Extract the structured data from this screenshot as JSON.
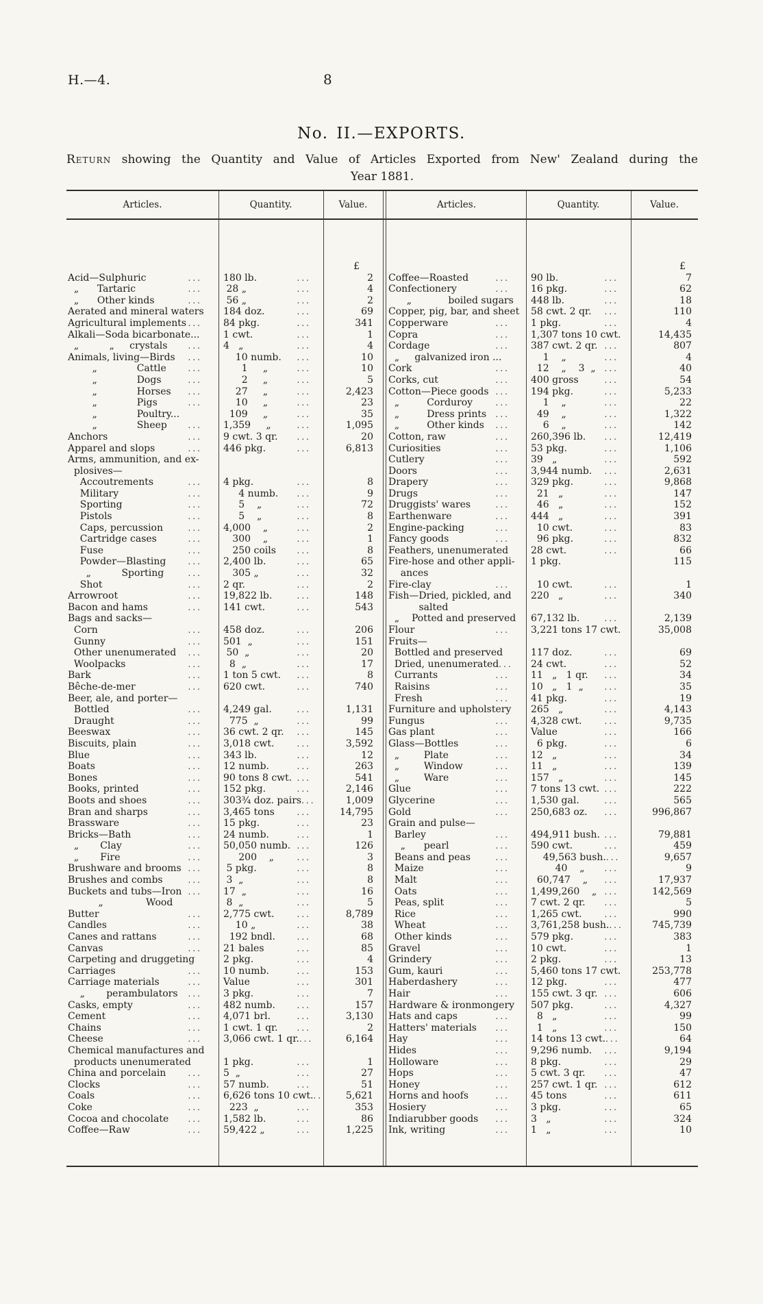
{
  "page": {
    "doc_ref": "H.—4.",
    "page_number": "8",
    "title": "No. II.—EXPORTS.",
    "subtitle_lead": "Return",
    "subtitle_rest": " showing the Quantity and Value of Articles Exported from New' Zealand during the",
    "subtitle_line2": "Year 1881."
  },
  "table": {
    "dots": "...",
    "currency_symbol": "£",
    "headers": [
      "Articles.",
      "Quantity.",
      "Value.",
      "Articles.",
      "Quantity.",
      "Value."
    ],
    "left_rows": [
      [
        "",
        0,
        "",
        0,
        "£"
      ],
      [
        "Acid—Sulphuric",
        1,
        "180 lb.",
        1,
        "2"
      ],
      [
        "  „      Tartaric",
        1,
        " 28 „",
        1,
        "4"
      ],
      [
        "  „      Other kinds",
        1,
        " 56 „",
        1,
        "2"
      ],
      [
        "Aerated and mineral waters",
        0,
        "184 doz.",
        1,
        "69"
      ],
      [
        "Agricultural implements",
        1,
        "84 pkg.",
        1,
        "341"
      ],
      [
        "Alkali—Soda bicarbonate...",
        0,
        "1 cwt.",
        1,
        "1"
      ],
      [
        "  „          „     crystals",
        1,
        "4   „",
        1,
        "4"
      ],
      [
        "Animals, living—Birds",
        1,
        "    10 numb.",
        1,
        "10"
      ],
      [
        "        „             Cattle",
        1,
        "      1     „",
        1,
        "10"
      ],
      [
        "        „             Dogs",
        1,
        "      2     „",
        1,
        "5"
      ],
      [
        "        „             Horses",
        1,
        "    27     „",
        1,
        "2,423"
      ],
      [
        "        „             Pigs",
        1,
        "    10     „",
        1,
        "23"
      ],
      [
        "        „             Poultry...",
        0,
        "  109     „",
        1,
        "35"
      ],
      [
        "        „             Sheep",
        1,
        "1,359     „",
        1,
        "1,095"
      ],
      [
        "Anchors",
        1,
        "9 cwt. 3 qr.",
        1,
        "20"
      ],
      [
        "Apparel and slops",
        1,
        "446 pkg.",
        1,
        "6,813"
      ],
      [
        "Arms, ammunition, and ex-",
        0,
        "",
        0,
        ""
      ],
      [
        "  plosives—",
        0,
        "",
        0,
        ""
      ],
      [
        "    Accoutrements",
        1,
        "4 pkg.",
        1,
        "8"
      ],
      [
        "    Military",
        1,
        "     4 numb.",
        1,
        "9"
      ],
      [
        "    Sporting",
        1,
        "     5    „",
        1,
        "72"
      ],
      [
        "    Pistols",
        1,
        "     5    „",
        1,
        "8"
      ],
      [
        "    Caps, percussion",
        1,
        "4,000    „",
        1,
        "2"
      ],
      [
        "    Cartridge cases",
        1,
        "   300    „",
        1,
        "1"
      ],
      [
        "    Fuse",
        1,
        "   250 coils",
        1,
        "8"
      ],
      [
        "    Powder—Blasting",
        1,
        "2,400 lb.",
        1,
        "65"
      ],
      [
        "      „          Sporting",
        1,
        "   305 „",
        1,
        "32"
      ],
      [
        "    Shot",
        1,
        "2 qr.",
        1,
        "2"
      ],
      [
        "Arrowroot",
        1,
        "19,822 lb.",
        1,
        "148"
      ],
      [
        "Bacon and hams",
        1,
        "141 cwt.",
        1,
        "543"
      ],
      [
        "Bags and sacks—",
        0,
        "",
        0,
        ""
      ],
      [
        "  Corn",
        1,
        "458 doz.",
        1,
        "206"
      ],
      [
        "  Gunny",
        1,
        "501  „",
        1,
        "151"
      ],
      [
        "  Other unenumerated",
        1,
        " 50  „",
        1,
        "20"
      ],
      [
        "  Woolpacks",
        1,
        "  8  „",
        1,
        "17"
      ],
      [
        "Bark",
        1,
        "1 ton 5 cwt.",
        1,
        "8"
      ],
      [
        "Bêche-de-mer",
        1,
        "620 cwt.",
        1,
        "740"
      ],
      [
        "Beer, ale, and porter—",
        0,
        "",
        0,
        ""
      ],
      [
        "  Bottled",
        1,
        "4,249 gal.",
        1,
        "1,131"
      ],
      [
        "  Draught",
        1,
        "  775  „",
        1,
        "99"
      ],
      [
        "Beeswax",
        1,
        "36 cwt. 2 qr.",
        1,
        "145"
      ],
      [
        "Biscuits, plain",
        1,
        "3,018 cwt.",
        1,
        "3,592"
      ],
      [
        "Blue",
        1,
        "343 lb.",
        1,
        "12"
      ],
      [
        "Boats",
        1,
        "12 numb.",
        1,
        "263"
      ],
      [
        "Bones",
        1,
        "90 tons 8 cwt.",
        1,
        "541"
      ],
      [
        "Books, printed",
        1,
        "152 pkg.",
        1,
        "2,146"
      ],
      [
        "Boots and shoes",
        1,
        "303¾ doz. pairs",
        1,
        "1,009"
      ],
      [
        "Bran and sharps",
        1,
        "3,465 tons",
        1,
        "14,795"
      ],
      [
        "Brassware",
        1,
        "15 pkg.",
        1,
        "23"
      ],
      [
        "Bricks—Bath",
        1,
        "24 numb.",
        1,
        "1"
      ],
      [
        "  „       Clay",
        1,
        "50,050 numb.",
        1,
        "126"
      ],
      [
        "  „       Fire",
        1,
        "     200    „",
        1,
        "3"
      ],
      [
        "Brushware and brooms",
        1,
        " 5 pkg.",
        1,
        "8"
      ],
      [
        "Brushes and combs",
        1,
        " 3  „",
        1,
        "8"
      ],
      [
        "Buckets and tubs—Iron",
        1,
        "17  „",
        1,
        "16"
      ],
      [
        "          „              Wood",
        0,
        " 8  „",
        1,
        "5"
      ],
      [
        "Butter",
        1,
        "2,775 cwt.",
        1,
        "8,789"
      ],
      [
        "Candles",
        1,
        "    10 „",
        1,
        "38"
      ],
      [
        "Canes and rattans",
        1,
        "  192 bndl.",
        1,
        "68"
      ],
      [
        "Canvas",
        1,
        "21 bales",
        1,
        "85"
      ],
      [
        "Carpeting and druggeting",
        0,
        "2 pkg.",
        1,
        "4"
      ],
      [
        "Carriages",
        1,
        "10 numb.",
        1,
        "153"
      ],
      [
        "Carriage materials",
        1,
        "Value",
        1,
        "301"
      ],
      [
        "    „       perambulators",
        1,
        "3 pkg.",
        1,
        "7"
      ],
      [
        "Casks, empty",
        1,
        "482 numb.",
        1,
        "157"
      ],
      [
        "Cement",
        1,
        "4,071 brl.",
        1,
        "3,130"
      ],
      [
        "Chains",
        1,
        "1 cwt. 1 qr.",
        1,
        "2"
      ],
      [
        "Cheese",
        1,
        "3,066 cwt. 1 qr.",
        1,
        "6,164"
      ],
      [
        "Chemical manufactures and",
        0,
        "",
        0,
        ""
      ],
      [
        "  products unenumerated",
        0,
        "1 pkg.",
        1,
        "1"
      ],
      [
        "China and porcelain",
        1,
        "5  „",
        1,
        "27"
      ],
      [
        "Clocks",
        1,
        "57 numb.",
        1,
        "51"
      ],
      [
        "Coals",
        1,
        "6,626 tons 10 cwt.",
        1,
        "5,621"
      ],
      [
        "Coke",
        1,
        "  223  „",
        1,
        "353"
      ],
      [
        "Cocoa and chocolate",
        1,
        "1,582 lb.",
        1,
        "86"
      ],
      [
        "Coffee—Raw",
        1,
        "59,422 „",
        1,
        "1,225"
      ]
    ],
    "right_rows": [
      [
        "",
        0,
        "",
        0,
        "£"
      ],
      [
        "Coffee—Roasted",
        1,
        "90 lb.",
        1,
        "7"
      ],
      [
        "Confectionery",
        1,
        "16 pkg.",
        1,
        "62"
      ],
      [
        "      „            boiled sugars",
        0,
        "448 lb.",
        1,
        "18"
      ],
      [
        "Copper, pig, bar, and sheet",
        0,
        "58 cwt. 2 qr.",
        1,
        "110"
      ],
      [
        "Copperware",
        1,
        "1 pkg.",
        1,
        "4"
      ],
      [
        "Copra",
        1,
        "1,307 tons 10 cwt.",
        0,
        "14,435"
      ],
      [
        "Cordage",
        1,
        "387 cwt. 2 qr.",
        1,
        "807"
      ],
      [
        "  „     galvanized iron ...",
        0,
        "    1    „",
        1,
        "4"
      ],
      [
        "Cork",
        1,
        "  12    „    3  „",
        1,
        "40"
      ],
      [
        "Corks, cut",
        1,
        "400 gross",
        1,
        "54"
      ],
      [
        "Cotton—Piece goods",
        1,
        "194 pkg.",
        1,
        "5,233"
      ],
      [
        "  „         Corduroy",
        1,
        "    1    „",
        1,
        "22"
      ],
      [
        "  „         Dress prints",
        1,
        "  49    „",
        1,
        "1,322"
      ],
      [
        "  „         Other kinds",
        1,
        "    6    „",
        1,
        "142"
      ],
      [
        "Cotton, raw",
        1,
        "260,396 lb.",
        1,
        "12,419"
      ],
      [
        "Curiosities",
        1,
        "53 pkg.",
        1,
        "1,106"
      ],
      [
        "Cutlery",
        1,
        "39   „",
        1,
        "592"
      ],
      [
        "Doors",
        1,
        "3,944 numb.",
        1,
        "2,631"
      ],
      [
        "Drapery",
        1,
        "329 pkg.",
        1,
        "9,868"
      ],
      [
        "Drugs",
        1,
        "  21   „",
        1,
        "147"
      ],
      [
        "Druggists' wares",
        1,
        "  46   „",
        1,
        "152"
      ],
      [
        "Earthenware",
        1,
        "444   „",
        1,
        "391"
      ],
      [
        "Engine-packing",
        1,
        "  10 cwt.",
        1,
        "83"
      ],
      [
        "Fancy goods",
        1,
        "  96 pkg.",
        1,
        "832"
      ],
      [
        "Feathers, unenumerated",
        0,
        "28 cwt.",
        1,
        "66"
      ],
      [
        "Fire-hose and other appli-",
        0,
        "1 pkg.",
        0,
        "115"
      ],
      [
        "    ances",
        0,
        "",
        0,
        ""
      ],
      [
        "Fire-clay",
        1,
        "  10 cwt.",
        1,
        "1"
      ],
      [
        "Fish—Dried, pickled, and",
        0,
        "220   „",
        1,
        "340"
      ],
      [
        "          salted",
        0,
        "",
        0,
        ""
      ],
      [
        "  „    Potted and preserved",
        0,
        "67,132 lb.",
        1,
        "2,139"
      ],
      [
        "Flour",
        1,
        "3,221 tons 17 cwt.",
        0,
        "35,008"
      ],
      [
        "Fruits—",
        0,
        "",
        0,
        ""
      ],
      [
        "  Bottled and preserved",
        0,
        "117 doz.",
        1,
        "69"
      ],
      [
        "  Dried, unenumerated",
        1,
        "24 cwt.",
        1,
        "52"
      ],
      [
        "  Currants",
        1,
        "11   „   1 qr.",
        1,
        "34"
      ],
      [
        "  Raisins",
        1,
        "10   „   1  „",
        1,
        "35"
      ],
      [
        "  Fresh",
        1,
        "41 pkg.",
        1,
        "19"
      ],
      [
        "Furniture and upholstery",
        0,
        "265   „",
        1,
        "4,143"
      ],
      [
        "Fungus",
        1,
        "4,328 cwt.",
        1,
        "9,735"
      ],
      [
        "Gas plant",
        1,
        "Value",
        1,
        "166"
      ],
      [
        "Glass—Bottles",
        1,
        "  6 pkg.",
        1,
        "6"
      ],
      [
        "  „        Plate",
        1,
        "12   „",
        1,
        "34"
      ],
      [
        "  „        Window",
        1,
        "11   „",
        1,
        "139"
      ],
      [
        "  „        Ware",
        1,
        "157   „",
        1,
        "145"
      ],
      [
        "Glue",
        1,
        "7 tons 13 cwt.",
        1,
        "222"
      ],
      [
        "Glycerine",
        1,
        "1,530 gal.",
        1,
        "565"
      ],
      [
        "Gold",
        1,
        "250,683 oz.",
        1,
        "996,867"
      ],
      [
        "Grain and pulse—",
        0,
        "",
        0,
        ""
      ],
      [
        "  Barley",
        1,
        "494,911 bush.",
        1,
        "79,881"
      ],
      [
        "    „      pearl",
        1,
        "590 cwt.",
        1,
        "459"
      ],
      [
        "  Beans and peas",
        1,
        "    49,563 bush.",
        1,
        "9,657"
      ],
      [
        "  Maize",
        1,
        "        40    „",
        1,
        "9"
      ],
      [
        "  Malt",
        1,
        "  60,747    „",
        1,
        "17,937"
      ],
      [
        "  Oats",
        1,
        "1,499,260    „",
        1,
        "142,569"
      ],
      [
        "  Peas, split",
        1,
        "7 cwt. 2 qr.",
        1,
        "5"
      ],
      [
        "  Rice",
        1,
        "1,265 cwt.",
        1,
        "990"
      ],
      [
        "  Wheat",
        1,
        "3,761,258 bush.",
        1,
        "745,739"
      ],
      [
        "  Other kinds",
        1,
        "579 pkg.",
        1,
        "383"
      ],
      [
        "Gravel",
        1,
        "10 cwt.",
        1,
        "1"
      ],
      [
        "Grindery",
        1,
        "2 pkg.",
        1,
        "13"
      ],
      [
        "Gum, kauri",
        1,
        "5,460 tons 17 cwt.",
        0,
        "253,778"
      ],
      [
        "Haberdashery",
        1,
        "12 pkg.",
        1,
        "477"
      ],
      [
        "Hair",
        1,
        "155 cwt. 3 qr.",
        1,
        "606"
      ],
      [
        "Hardware & ironmongery",
        0,
        "507 pkg.",
        1,
        "4,327"
      ],
      [
        "Hats and caps",
        1,
        "  8   „",
        1,
        "99"
      ],
      [
        "Hatters' materials",
        1,
        "  1   „",
        1,
        "150"
      ],
      [
        "Hay",
        1,
        "14 tons 13 cwt.",
        1,
        "64"
      ],
      [
        "Hides",
        1,
        "9,296 numb.",
        1,
        "9,194"
      ],
      [
        "Holloware",
        1,
        "8 pkg.",
        1,
        "29"
      ],
      [
        "Hops",
        1,
        "5 cwt. 3 qr.",
        1,
        "47"
      ],
      [
        "Honey",
        1,
        "257 cwt. 1 qr.",
        1,
        "612"
      ],
      [
        "Horns and hoofs",
        1,
        "45 tons",
        1,
        "611"
      ],
      [
        "Hosiery",
        1,
        "3 pkg.",
        1,
        "65"
      ],
      [
        "Indiarubber goods",
        1,
        "3   „",
        1,
        "324"
      ],
      [
        "Ink, writing",
        1,
        "1   „",
        1,
        "10"
      ]
    ]
  }
}
